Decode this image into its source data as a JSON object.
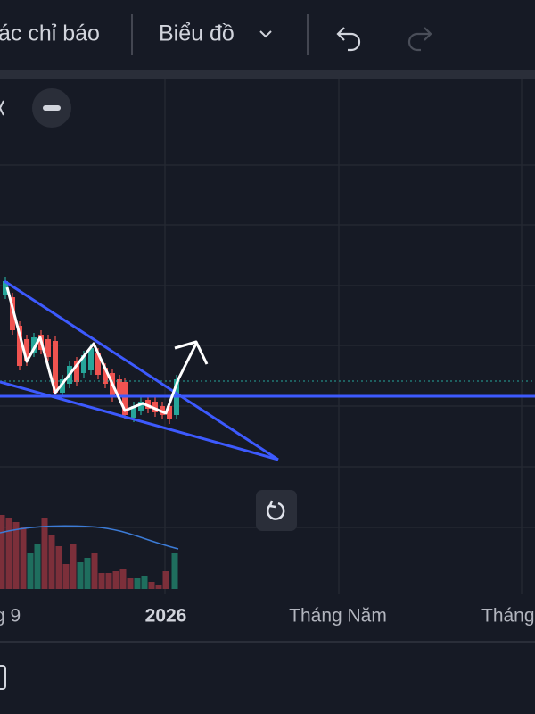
{
  "toolbar": {
    "indicators": "ác chỉ báo",
    "chart_type": "Biểu đồ"
  },
  "time_axis": {
    "labels": [
      "g 9",
      "2026",
      "Tháng Năm",
      "Tháng"
    ]
  }
}
